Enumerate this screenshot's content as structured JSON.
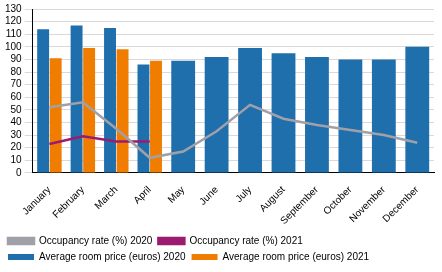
{
  "chart_data": {
    "type": "bar",
    "categories": [
      "January",
      "February",
      "March",
      "April",
      "May",
      "June",
      "July",
      "August",
      "September",
      "October",
      "November",
      "December"
    ],
    "series": [
      {
        "name": "Average room price (euros) 2020",
        "type": "bar",
        "color": "#1f6fad",
        "values": [
          114,
          117,
          115,
          86,
          89,
          92,
          99,
          95,
          92,
          90,
          90,
          100
        ]
      },
      {
        "name": "Average room price (euros) 2021",
        "type": "bar",
        "color": "#f07d00",
        "values": [
          91,
          99,
          98,
          89,
          null,
          null,
          null,
          null,
          null,
          null,
          null,
          null
        ]
      },
      {
        "name": "Occupancy rate (%) 2020",
        "type": "line",
        "color": "#a0a0a8",
        "values": [
          52,
          56,
          35,
          12,
          17,
          33,
          54,
          43,
          38,
          34,
          30,
          24
        ]
      },
      {
        "name": "Occupancy rate (%) 2021",
        "type": "line",
        "color": "#9b1b70",
        "values": [
          23,
          29,
          25,
          25,
          null,
          null,
          null,
          null,
          null,
          null,
          null,
          null
        ]
      }
    ],
    "ylim": [
      0,
      130
    ],
    "yticks": [
      0,
      10,
      20,
      30,
      40,
      50,
      60,
      70,
      80,
      90,
      100,
      110,
      120,
      130
    ],
    "grid": true,
    "legend": "bottom"
  }
}
